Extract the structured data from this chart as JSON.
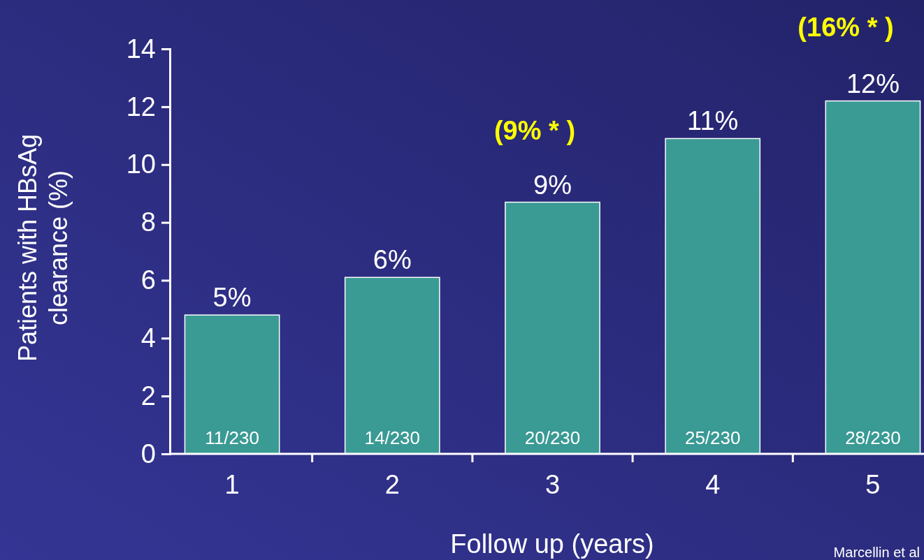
{
  "chart_data": {
    "type": "bar",
    "categories": [
      "1",
      "2",
      "3",
      "4",
      "5"
    ],
    "values": [
      4.8,
      6.1,
      8.7,
      10.9,
      12.2
    ],
    "value_labels": [
      "5%",
      "6%",
      "9%",
      "11%",
      "12%"
    ],
    "color": "#3a9a94",
    "ylim": [
      0,
      14
    ],
    "yticks": [
      0,
      2,
      4,
      6,
      8,
      10,
      12,
      14
    ],
    "xlabel": "Follow up (years)",
    "ylabel": "Patients with HBsAg clearance (%)",
    "annotations": [
      {
        "text": "11/230",
        "x": "1",
        "y": 0
      },
      {
        "text": "14/230",
        "x": "2",
        "y": 0
      },
      {
        "text": "20/230",
        "x": "3",
        "y": 0
      },
      {
        "text": "25/230",
        "x": "4",
        "y": 0
      },
      {
        "text": "28/230",
        "x": "5",
        "y": 0
      },
      "(9% * )",
      "(16% * )",
      "Marcellin et al"
    ],
    "grid": false
  }
}
